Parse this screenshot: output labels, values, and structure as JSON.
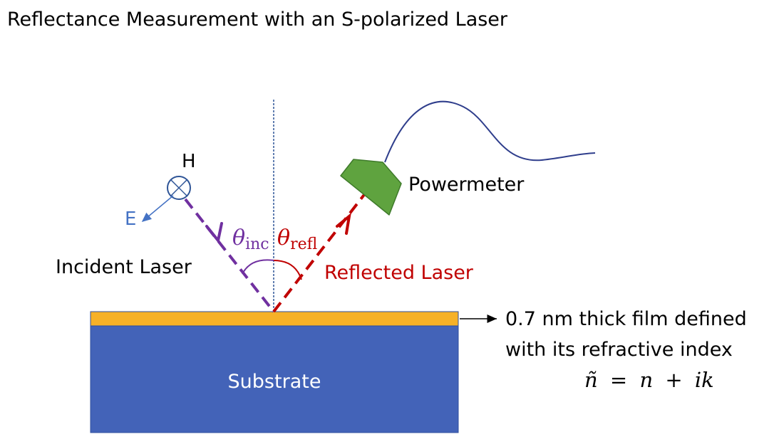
{
  "title": "Reflectance Measurement with an S-polarized Laser",
  "labels": {
    "h_field": "H",
    "e_field": "E",
    "incident_laser": "Incident Laser",
    "reflected_laser": "Reflected Laser",
    "powermeter": "Powermeter",
    "substrate": "Substrate",
    "film_line1": "0.7 nm thick film defined",
    "film_line2": "with its refractive index"
  },
  "angles": {
    "theta_symbol": "θ",
    "incident_subscript": "inc",
    "reflected_subscript": "refl"
  },
  "equation": {
    "lhs": "ñ",
    "equals": "=",
    "n": "n",
    "plus": "+",
    "ik": "ik"
  },
  "colors": {
    "title_text": "#000000",
    "incident_beam": "#7030A0",
    "reflected_beam": "#C00000",
    "e_vector": "#4472C4",
    "normal_line": "#2F5597",
    "film": "#F6B128",
    "substrate": "#4363B8",
    "powermeter": "#5FA33F",
    "cable": "#2F3E8C",
    "substrate_label": "#ffffff"
  }
}
